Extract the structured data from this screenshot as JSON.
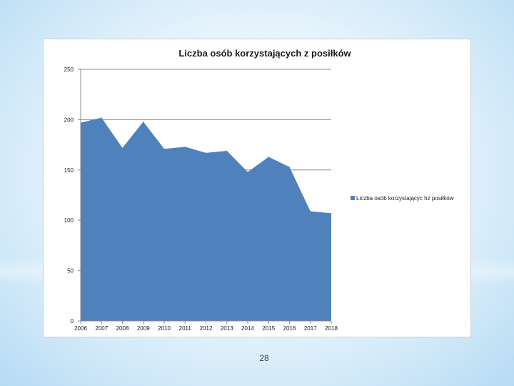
{
  "page_number": "28",
  "chart_data": {
    "type": "area",
    "title": "Liczba osób korzystających z posiłków",
    "x": [
      "2006",
      "2007",
      "2008",
      "2009",
      "2010",
      "2011",
      "2012",
      "2013",
      "2014",
      "2015",
      "2016",
      "2017",
      "2018"
    ],
    "series": [
      {
        "name": "Liczba osób korzystającyc hz posiłków",
        "values": [
          197,
          202,
          172,
          198,
          171,
          173,
          167,
          169,
          148,
          163,
          153,
          109,
          107
        ],
        "color": "#4f81bd"
      }
    ],
    "yticks": [
      "0",
      "50",
      "100",
      "150",
      "200",
      "250"
    ],
    "ylim": [
      0,
      250
    ],
    "grid": true,
    "legend": "right"
  }
}
